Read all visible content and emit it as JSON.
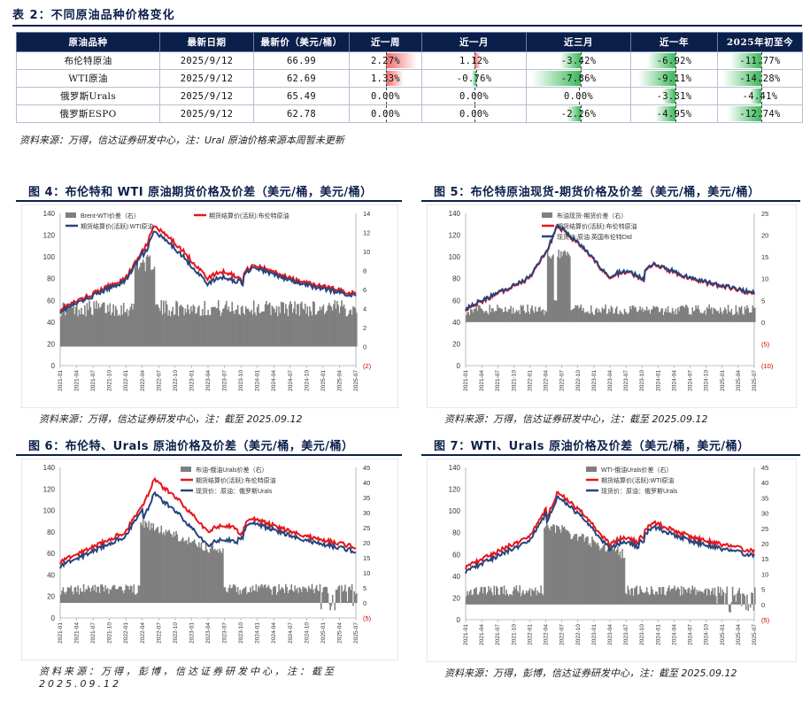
{
  "table": {
    "title": "表 2：不同原油品种价格变化",
    "headers": [
      "原油品种",
      "最新日期",
      "最新价（美元/桶）",
      "近一周",
      "近一月",
      "近三月",
      "近一年",
      "2025年初至今"
    ],
    "rows": [
      {
        "name": "布伦特原油",
        "date": "2025/9/12",
        "price": "66.99",
        "cells": [
          {
            "text": "2.27%",
            "v": 2.27
          },
          {
            "text": "1.12%",
            "v": 1.12
          },
          {
            "text": "-3.42%",
            "v": -3.42
          },
          {
            "text": "-6.92%",
            "v": -6.92
          },
          {
            "text": "-11.77%",
            "v": -11.77
          }
        ]
      },
      {
        "name": "WTI原油",
        "date": "2025/9/12",
        "price": "62.69",
        "cells": [
          {
            "text": "1.33%",
            "v": 1.33
          },
          {
            "text": "-0.76%",
            "v": -0.76
          },
          {
            "text": "-7.86%",
            "v": -7.86
          },
          {
            "text": "-9.11%",
            "v": -9.11
          },
          {
            "text": "-14.28%",
            "v": -14.28
          }
        ]
      },
      {
        "name": "俄罗斯Urals",
        "date": "2025/9/12",
        "price": "65.49",
        "cells": [
          {
            "text": "0.00%",
            "v": 0.0
          },
          {
            "text": "0.00%",
            "v": 0.0
          },
          {
            "text": "0.00%",
            "v": 0.0
          },
          {
            "text": "-3.31%",
            "v": -3.31
          },
          {
            "text": "-4.41%",
            "v": -4.41
          }
        ]
      },
      {
        "name": "俄罗斯ESPO",
        "date": "2025/9/12",
        "price": "62.78",
        "cells": [
          {
            "text": "0.00%",
            "v": 0.0
          },
          {
            "text": "0.00%",
            "v": 0.0
          },
          {
            "text": "-2.26%",
            "v": -2.26
          },
          {
            "text": "-4.95%",
            "v": -4.95
          },
          {
            "text": "-12.74%",
            "v": -12.74
          }
        ]
      }
    ],
    "source": "资料来源：万得，信达证券研发中心，注：Ural 原油价格来源本周暂未更新",
    "colors": {
      "positive": "#f26b6b",
      "negative": "#3cb95a",
      "header": "#0b1f4b"
    }
  },
  "figures": [
    {
      "title": "图 4：布伦特和 WTI 原油期货价格及价差（美元/桶，美元/桶）",
      "source": "资料来源：万得，信达证券研发中心，注：截至 2025.09.12",
      "legend": [
        "Brent-WTI价差（右）",
        "期货结算价(活跃):布伦特原油",
        "期货结算价(活跃):WTI原油"
      ],
      "left_ticks": [
        "140",
        "120",
        "100",
        "80",
        "60",
        "40",
        "20",
        "0"
      ],
      "right_ticks": [
        "14",
        "12",
        "10",
        "8",
        "6",
        "4",
        "2",
        "0",
        "(2)"
      ],
      "x_ticks": [
        "2021-01",
        "2021-04",
        "2021-07",
        "2021-10",
        "2022-01",
        "2022-04",
        "2022-07",
        "2022-10",
        "2023-01",
        "2023-04",
        "2023-07",
        "2023-10",
        "2024-01",
        "2024-04",
        "2024-07",
        "2024-10",
        "2025-01",
        "2025-04",
        "2025-07"
      ]
    },
    {
      "title": "图 5：布伦特原油现货-期货价格及价差（美元/桶，美元/桶）",
      "source": "资料来源：万得，信达证券研发中心，注：截至 2025.09.12",
      "legend": [
        "布油现货-期货价差（右）",
        "期货结算价(活跃):布伦特原油",
        "现货价:原油:英国布伦特Dtd"
      ],
      "left_ticks": [
        "140",
        "120",
        "100",
        "80",
        "60",
        "40",
        "20",
        "0"
      ],
      "right_ticks": [
        "25",
        "20",
        "15",
        "10",
        "5",
        "0",
        "(5)",
        "(10)"
      ],
      "x_ticks": [
        "2021-01",
        "2021-04",
        "2021-07",
        "2021-10",
        "2022-01",
        "2022-04",
        "2022-07",
        "2022-10",
        "2023-01",
        "2023-04",
        "2023-07",
        "2023-10",
        "2024-01",
        "2024-04",
        "2024-07",
        "2024-10",
        "2025-01",
        "2025-04",
        "2025-07"
      ]
    },
    {
      "title": "图 6：布伦特、Urals 原油价格及价差（美元/桶，美元/桶）",
      "source": "资料来源：万得，彭博，信达证券研发中心，注：截至 2025.09.12",
      "legend": [
        "布油-俄油Urals价差（右）",
        "期货结算价(活跃):布伦特原油",
        "现货价：原油：俄罗斯Urals"
      ],
      "left_ticks": [
        "140",
        "120",
        "100",
        "80",
        "60",
        "40",
        "20",
        "0"
      ],
      "right_ticks": [
        "45",
        "40",
        "35",
        "30",
        "25",
        "20",
        "15",
        "10",
        "5",
        "0",
        "(5)"
      ],
      "x_ticks": [
        "2021-01",
        "2021-04",
        "2021-07",
        "2021-10",
        "2022-01",
        "2022-04",
        "2022-07",
        "2022-10",
        "2023-01",
        "2023-04",
        "2023-07",
        "2023-10",
        "2024-01",
        "2024-04",
        "2024-07",
        "2024-10",
        "2025-01",
        "2025-04",
        "2025-07"
      ]
    },
    {
      "title": "图 7：WTI、Urals 原油价格及价差（美元/桶，美元/桶）",
      "source": "资料来源：万得，彭博，信达证券研发中心，注：截至 2025.09.12",
      "legend": [
        "WTI-俄油Urals价差（右）",
        "期货结算价(活跃):WTI原油",
        "现货价：原油：俄罗斯Urals"
      ],
      "left_ticks": [
        "140",
        "120",
        "100",
        "80",
        "60",
        "40",
        "20",
        "0"
      ],
      "right_ticks": [
        "45",
        "40",
        "35",
        "30",
        "25",
        "20",
        "15",
        "10",
        "5",
        "0",
        "(5)"
      ],
      "x_ticks": [
        "2021-01",
        "2021-04",
        "2021-07",
        "2021-10",
        "2022-01",
        "2022-04",
        "2022-07",
        "2022-10",
        "2023-01",
        "2023-04",
        "2023-07",
        "2023-10",
        "2024-01",
        "2024-04",
        "2024-07",
        "2024-10",
        "2025-01",
        "2025-04",
        "2025-07"
      ]
    }
  ],
  "chart_colors": {
    "red": "#e8161d",
    "navy": "#28457c",
    "gray": "#7f7f7f"
  }
}
